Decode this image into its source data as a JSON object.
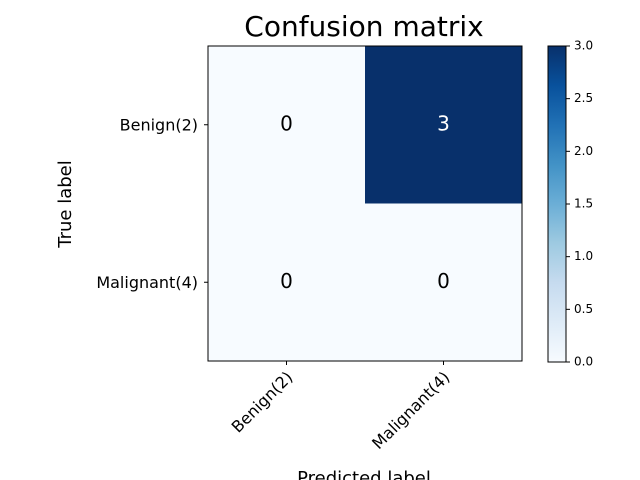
{
  "chart_data": {
    "type": "heatmap",
    "title": "Confusion matrix",
    "x_label": "Predicted label",
    "y_label": "True label",
    "x_categories": [
      "Benign(2)",
      "Malignant(4)"
    ],
    "y_categories": [
      "Benign(2)",
      "Malignant(4)"
    ],
    "values": [
      [
        0,
        3
      ],
      [
        0,
        0
      ]
    ],
    "colorscale": [
      "#f7fbff",
      "#deebf7",
      "#c6dbef",
      "#9ecae1",
      "#6baed6",
      "#4292c6",
      "#2171b5",
      "#08519c",
      "#08306b"
    ],
    "clim": [
      0,
      3
    ],
    "cticks": [
      {
        "value": 0,
        "label": "0.0"
      },
      {
        "value": 0.5,
        "label": "0.5"
      },
      {
        "value": 1,
        "label": "1.0"
      },
      {
        "value": 1.5,
        "label": "1.5"
      },
      {
        "value": 2,
        "label": "2.0"
      },
      {
        "value": 2.5,
        "label": "2.5"
      },
      {
        "value": 3,
        "label": "3.0"
      }
    ]
  }
}
